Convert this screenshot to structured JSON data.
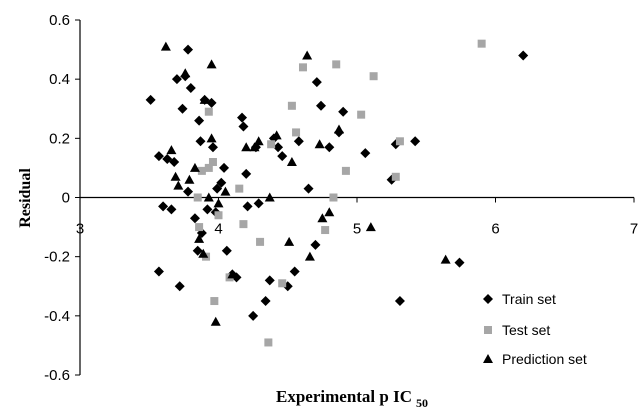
{
  "chart_data": {
    "type": "scatter",
    "title": "",
    "xlabel": "Experimental p IC",
    "xlabel_subscript": "50",
    "ylabel": "Residual",
    "xlim": [
      3,
      7
    ],
    "ylim": [
      -0.6,
      0.6
    ],
    "x_ticks": [
      3,
      4,
      5,
      6,
      7
    ],
    "y_ticks": [
      0.6,
      0.4,
      0.2,
      0,
      -0.2,
      -0.4,
      -0.6
    ],
    "x_tick_labels": [
      "3",
      "4",
      "5",
      "6",
      "7"
    ],
    "y_tick_labels": [
      "0.6",
      "0.4",
      "0.2",
      "0",
      "-0.2",
      "-0.4",
      "-0.6"
    ],
    "grid": false,
    "legend_position": "bottom-right",
    "colors": {
      "train": "#000000",
      "test": "#a6a6a6",
      "prediction": "#000000"
    },
    "series": [
      {
        "name": "Train set",
        "marker": "diamond",
        "points": [
          [
            3.51,
            0.33
          ],
          [
            3.57,
            0.14
          ],
          [
            3.57,
            -0.25
          ],
          [
            3.6,
            -0.03
          ],
          [
            3.63,
            0.13
          ],
          [
            3.66,
            -0.04
          ],
          [
            3.68,
            0.12
          ],
          [
            3.7,
            0.4
          ],
          [
            3.72,
            -0.3
          ],
          [
            3.74,
            0.3
          ],
          [
            3.76,
            0.41
          ],
          [
            3.78,
            0.5
          ],
          [
            3.78,
            0.02
          ],
          [
            3.8,
            0.37
          ],
          [
            3.83,
            -0.07
          ],
          [
            3.85,
            -0.18
          ],
          [
            3.86,
            0.26
          ],
          [
            3.87,
            0.19
          ],
          [
            3.88,
            -0.12
          ],
          [
            3.9,
            0.33
          ],
          [
            3.92,
            -0.04
          ],
          [
            3.95,
            0.32
          ],
          [
            3.96,
            0.17
          ],
          [
            3.98,
            -0.05
          ],
          [
            3.99,
            0.03
          ],
          [
            4.02,
            0.05
          ],
          [
            4.04,
            0.1
          ],
          [
            4.06,
            -0.18
          ],
          [
            4.1,
            -0.26
          ],
          [
            4.13,
            -0.27
          ],
          [
            4.17,
            0.27
          ],
          [
            4.18,
            0.24
          ],
          [
            4.2,
            0.08
          ],
          [
            4.21,
            -0.03
          ],
          [
            4.25,
            -0.4
          ],
          [
            4.27,
            0.17
          ],
          [
            4.29,
            -0.02
          ],
          [
            4.34,
            -0.35
          ],
          [
            4.37,
            -0.28
          ],
          [
            4.4,
            0.2
          ],
          [
            4.43,
            0.17
          ],
          [
            4.46,
            0.14
          ],
          [
            4.5,
            -0.3
          ],
          [
            4.55,
            -0.25
          ],
          [
            4.58,
            0.19
          ],
          [
            4.65,
            0.03
          ],
          [
            4.7,
            -0.16
          ],
          [
            4.71,
            0.39
          ],
          [
            4.74,
            0.31
          ],
          [
            4.8,
            0.17
          ],
          [
            4.87,
            0.22
          ],
          [
            4.9,
            0.29
          ],
          [
            5.06,
            0.15
          ],
          [
            5.25,
            0.06
          ],
          [
            5.28,
            0.18
          ],
          [
            5.31,
            -0.35
          ],
          [
            5.42,
            0.19
          ],
          [
            5.74,
            -0.22
          ],
          [
            6.2,
            0.48
          ]
        ]
      },
      {
        "name": "Test set",
        "marker": "square",
        "points": [
          [
            3.85,
            0.0
          ],
          [
            3.86,
            -0.1
          ],
          [
            3.88,
            0.09
          ],
          [
            3.91,
            -0.2
          ],
          [
            3.93,
            0.1
          ],
          [
            3.93,
            0.29
          ],
          [
            3.96,
            0.12
          ],
          [
            3.97,
            -0.35
          ],
          [
            4.0,
            -0.06
          ],
          [
            4.08,
            -0.27
          ],
          [
            4.15,
            0.03
          ],
          [
            4.18,
            -0.09
          ],
          [
            4.3,
            -0.15
          ],
          [
            4.36,
            -0.49
          ],
          [
            4.38,
            0.18
          ],
          [
            4.46,
            -0.29
          ],
          [
            4.53,
            0.31
          ],
          [
            4.56,
            0.22
          ],
          [
            4.61,
            0.44
          ],
          [
            4.77,
            -0.11
          ],
          [
            4.83,
            0.0
          ],
          [
            4.85,
            0.45
          ],
          [
            4.92,
            0.09
          ],
          [
            5.03,
            0.28
          ],
          [
            5.12,
            0.41
          ],
          [
            5.28,
            0.07
          ],
          [
            5.31,
            0.19
          ],
          [
            5.9,
            0.52
          ]
        ]
      },
      {
        "name": "Prediction set",
        "marker": "triangle",
        "points": [
          [
            3.62,
            0.51
          ],
          [
            3.66,
            0.16
          ],
          [
            3.69,
            0.07
          ],
          [
            3.71,
            0.04
          ],
          [
            3.76,
            0.42
          ],
          [
            3.79,
            0.06
          ],
          [
            3.83,
            0.1
          ],
          [
            3.86,
            -0.14
          ],
          [
            3.89,
            -0.19
          ],
          [
            3.9,
            0.33
          ],
          [
            3.93,
            0.0
          ],
          [
            3.95,
            0.2
          ],
          [
            3.95,
            0.45
          ],
          [
            3.98,
            -0.42
          ],
          [
            4.0,
            -0.02
          ],
          [
            4.05,
            0.02
          ],
          [
            4.1,
            -0.26
          ],
          [
            4.2,
            0.17
          ],
          [
            4.26,
            0.17
          ],
          [
            4.29,
            0.19
          ],
          [
            4.37,
            0.0
          ],
          [
            4.42,
            0.21
          ],
          [
            4.51,
            -0.15
          ],
          [
            4.53,
            0.12
          ],
          [
            4.64,
            0.48
          ],
          [
            4.66,
            -0.2
          ],
          [
            4.73,
            0.18
          ],
          [
            4.75,
            -0.07
          ],
          [
            4.8,
            -0.05
          ],
          [
            4.87,
            0.23
          ],
          [
            5.1,
            -0.1
          ],
          [
            5.64,
            -0.21
          ]
        ]
      }
    ]
  }
}
